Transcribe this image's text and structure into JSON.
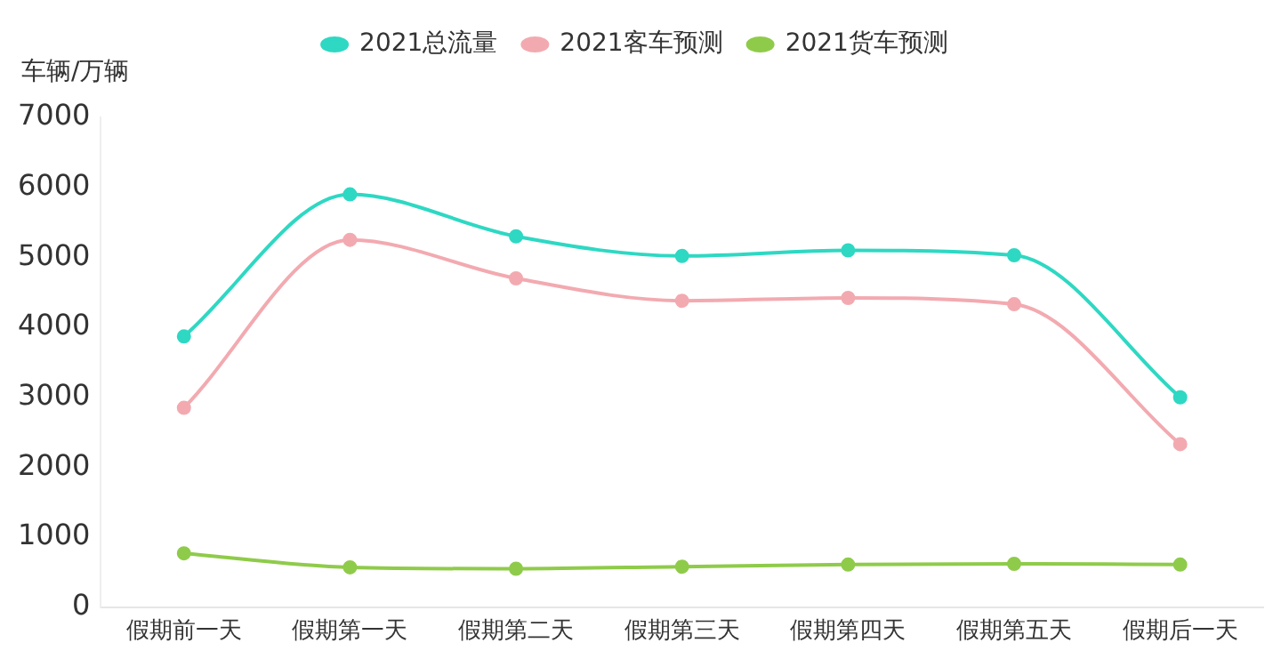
{
  "chart_data": {
    "type": "line",
    "ylabel": "车辆/万辆",
    "categories": [
      "假期前一天",
      "假期第一天",
      "假期第二天",
      "假期第三天",
      "假期第四天",
      "假期第五天",
      "假期后一天"
    ],
    "series": [
      {
        "name": "2021总流量",
        "color": "#2ed8c3",
        "values": [
          3870,
          5900,
          5300,
          5020,
          5100,
          5030,
          3000
        ]
      },
      {
        "name": "2021客车预测",
        "color": "#f2aab0",
        "values": [
          2850,
          5250,
          4700,
          4380,
          4420,
          4330,
          2330
        ]
      },
      {
        "name": "2021货车预测",
        "color": "#8fcb4a",
        "values": [
          770,
          570,
          550,
          580,
          610,
          620,
          610
        ]
      }
    ],
    "ylim": [
      0,
      7000
    ],
    "yticks": [
      0,
      1000,
      2000,
      3000,
      4000,
      5000,
      6000,
      7000
    ],
    "grid": false,
    "legend": "top",
    "marker": "circle",
    "line_style": "solid"
  }
}
